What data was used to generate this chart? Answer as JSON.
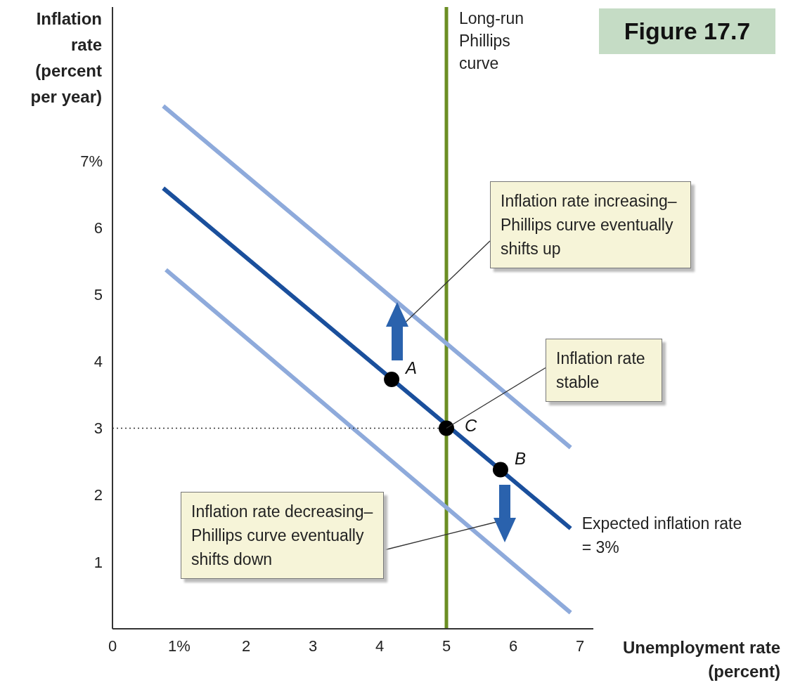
{
  "chart_data": {
    "type": "line",
    "title": "Figure 17.7",
    "xlabel": "Unemployment rate (percent)",
    "ylabel": "Inflation rate (percent per year)",
    "xlim": [
      0,
      7.2
    ],
    "ylim": [
      0,
      9.3
    ],
    "xticks": [
      {
        "value": 0,
        "label": "0"
      },
      {
        "value": 1,
        "label": "1%"
      },
      2,
      3,
      4,
      5,
      6,
      7
    ],
    "yticks": [
      1,
      2,
      3,
      4,
      5,
      6,
      {
        "value": 7,
        "label": "7%"
      }
    ],
    "grid": false,
    "legend": false,
    "series": [
      {
        "color": "#8eaadb",
        "x": [
          0.76,
          6.86
        ],
        "values": [
          7.82,
          2.71
        ],
        "marker": "none"
      },
      {
        "name": "Expected inflation rate = 3%",
        "color": "#1a4f9c",
        "x": [
          0.76,
          6.86
        ],
        "values": [
          6.59,
          1.5
        ],
        "marker": "none"
      },
      {
        "color": "#8eaadb",
        "x": [
          0.8,
          6.86
        ],
        "values": [
          5.37,
          0.24
        ],
        "marker": "none"
      },
      {
        "color": "#333333",
        "x": [
          0,
          5
        ],
        "values": [
          3,
          3
        ],
        "line_style": "dotted",
        "marker": "none"
      },
      {
        "type": "scatter",
        "color": "#000000",
        "x": [
          4.18,
          5,
          5.81
        ],
        "values": [
          3.73,
          3,
          2.38
        ],
        "marker": "circle"
      }
    ],
    "ref_lines": [
      {
        "axis": "x",
        "value": 5,
        "label": "Long-run Phillips curve",
        "color": "#6b8e23"
      }
    ],
    "annotations": [
      "Inflation rate increasing–Phillips curve eventually shifts up",
      {
        "text": "Inflation rate stable",
        "x": 5,
        "y": 3
      },
      "Inflation rate decreasing–Phillips curve eventually shifts down",
      {
        "text": "A",
        "x": 4.18,
        "y": 3.73
      },
      {
        "text": "B",
        "x": 5.81,
        "y": 2.38
      },
      {
        "text": "C",
        "x": 5,
        "y": 3
      }
    ]
  }
}
